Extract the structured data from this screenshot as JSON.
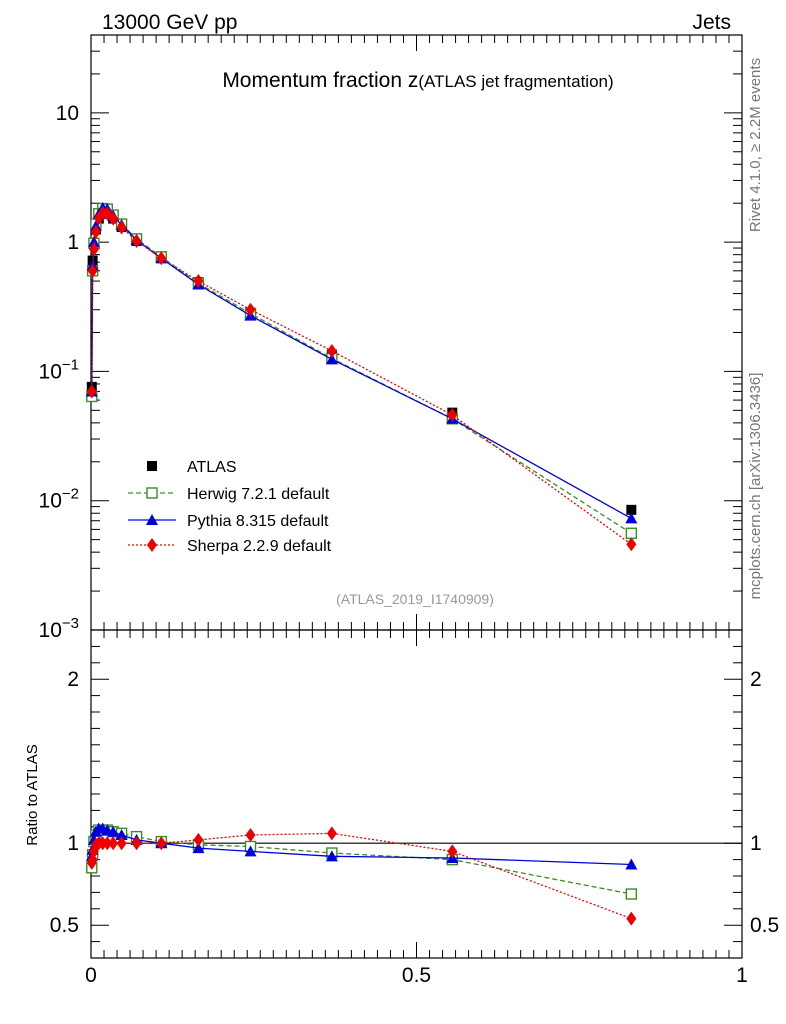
{
  "header": {
    "left": "13000 GeV pp",
    "right": "Jets"
  },
  "side_labels": {
    "rivet": "Rivet 4.1.0, ≥ 2.2M events",
    "source": "mcplots.cern.ch [arXiv:1306.3436]"
  },
  "chart_data": [
    {
      "type": "line",
      "panel": "main",
      "title_main": "Momentum fraction z",
      "title_sub": "(ATLAS jet fragmentation)",
      "analysis_id": "(ATLAS_2019_I1740909)",
      "xlabel": "",
      "ylabel": "",
      "xlim": [
        0,
        1
      ],
      "ylim": [
        0.001,
        40
      ],
      "yscale": "log",
      "y_tick_labels": [
        {
          "base": "10",
          "exp": "−3",
          "value": 0.001
        },
        {
          "base": "10",
          "exp": "−2",
          "value": 0.01
        },
        {
          "base": "10",
          "exp": "−1",
          "value": 0.1
        },
        {
          "base": "1",
          "exp": "",
          "value": 1
        },
        {
          "base": "10",
          "exp": "",
          "value": 10
        }
      ],
      "x": [
        0.0012,
        0.0025,
        0.0045,
        0.0075,
        0.012,
        0.018,
        0.025,
        0.034,
        0.047,
        0.07,
        0.108,
        0.165,
        0.245,
        0.37,
        0.555,
        0.83
      ],
      "series": [
        {
          "name": "ATLAS",
          "color": "#000000",
          "marker": "square",
          "line": "none",
          "values": [
            0.076,
            0.72,
            0.97,
            1.25,
            1.52,
            1.68,
            1.66,
            1.52,
            1.31,
            1.02,
            0.75,
            0.49,
            0.285,
            0.135,
            0.048,
            0.0085
          ]
        },
        {
          "name": "Herwig 7.2.1 default",
          "color": "#3a8e22",
          "marker": "open-square",
          "line": "dashed",
          "values": [
            0.064,
            0.6,
            0.98,
            1.38,
            1.66,
            1.82,
            1.8,
            1.62,
            1.38,
            1.06,
            0.77,
            0.48,
            0.28,
            0.126,
            0.043,
            0.0056
          ]
        },
        {
          "name": "Pythia 8.315 default",
          "color": "#0000dd",
          "marker": "triangle",
          "line": "solid",
          "values": [
            0.07,
            0.66,
            1.0,
            1.33,
            1.65,
            1.84,
            1.8,
            1.6,
            1.36,
            1.04,
            0.75,
            0.47,
            0.27,
            0.124,
            0.043,
            0.0073
          ]
        },
        {
          "name": "Sherpa 2.2.9 default",
          "color": "#ee0000",
          "marker": "diamond",
          "line": "dotted",
          "values": [
            0.07,
            0.6,
            0.88,
            1.2,
            1.53,
            1.68,
            1.67,
            1.52,
            1.3,
            1.02,
            0.75,
            0.5,
            0.3,
            0.144,
            0.046,
            0.0046
          ]
        }
      ]
    },
    {
      "type": "line",
      "panel": "ratio",
      "ylabel": "Ratio to ATLAS",
      "xlim": [
        0,
        1
      ],
      "ylim": [
        0.3,
        2.3
      ],
      "x_ticks": [
        0,
        0.5,
        1
      ],
      "x_tick_labels": [
        "0",
        "0.5",
        "1"
      ],
      "y_ticks": [
        0.5,
        1,
        2
      ],
      "y_tick_labels": [
        "0.5",
        "1",
        "2"
      ],
      "reference_line": 1,
      "x": [
        0.0012,
        0.0025,
        0.0045,
        0.0075,
        0.012,
        0.018,
        0.025,
        0.034,
        0.047,
        0.07,
        0.108,
        0.165,
        0.245,
        0.37,
        0.555,
        0.83
      ],
      "series": [
        {
          "name": "Herwig 7.2.1 default",
          "color": "#3a8e22",
          "marker": "open-square",
          "line": "dashed",
          "values": [
            0.85,
            0.93,
            1.01,
            1.05,
            1.08,
            1.08,
            1.08,
            1.07,
            1.06,
            1.04,
            1.01,
            0.99,
            0.98,
            0.94,
            0.9,
            0.69
          ]
        },
        {
          "name": "Pythia 8.315 default",
          "color": "#0000dd",
          "marker": "triangle",
          "line": "solid",
          "values": [
            0.92,
            0.96,
            1.02,
            1.07,
            1.09,
            1.09,
            1.08,
            1.07,
            1.05,
            1.02,
            1.0,
            0.97,
            0.95,
            0.92,
            0.91,
            0.87
          ]
        },
        {
          "name": "Sherpa 2.2.9 default",
          "color": "#ee0000",
          "marker": "diamond",
          "line": "dotted",
          "values": [
            0.88,
            0.9,
            0.95,
            0.99,
            1.0,
            1.0,
            1.0,
            1.0,
            1.0,
            1.0,
            1.0,
            1.02,
            1.05,
            1.06,
            0.95,
            0.54
          ]
        }
      ]
    }
  ]
}
